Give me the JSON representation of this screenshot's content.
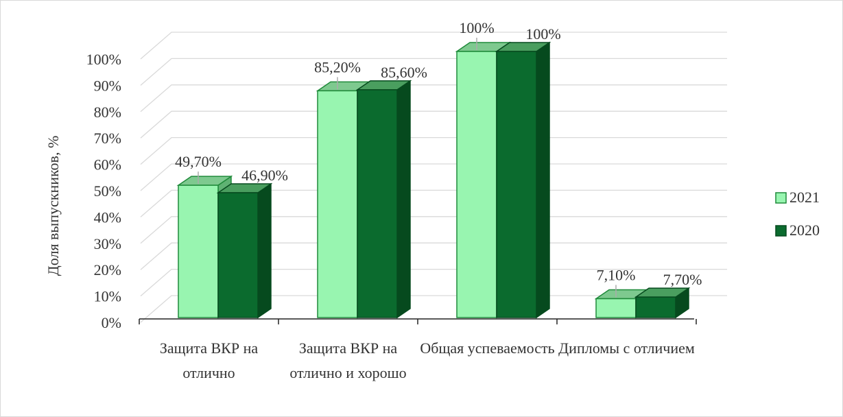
{
  "chart_data": {
    "type": "bar3d",
    "y_axis_label": "Доля выпускников, %",
    "categories": [
      "Защита ВКР на отлично",
      "Защита ВКР на отлично и хорошо",
      "Общая успеваемость",
      "Дипломы с отличием"
    ],
    "series": [
      {
        "name": "2021",
        "color": "#98f5b0",
        "values": [
          49.7,
          85.2,
          100,
          7.1
        ],
        "value_labels": [
          "49,70%",
          "85,20%",
          "100%",
          "7,10%"
        ]
      },
      {
        "name": "2020",
        "color": "#0b6b2e",
        "values": [
          46.9,
          85.6,
          100,
          7.7
        ],
        "value_labels": [
          "46,90%",
          "85,60%",
          "100%",
          "7,70%"
        ]
      }
    ],
    "ylim": [
      0,
      100
    ],
    "yticks": [
      {
        "value": 0,
        "label": "0%"
      },
      {
        "value": 10,
        "label": "10%"
      },
      {
        "value": 20,
        "label": "20%"
      },
      {
        "value": 30,
        "label": "30%"
      },
      {
        "value": 40,
        "label": "40%"
      },
      {
        "value": 50,
        "label": "50%"
      },
      {
        "value": 60,
        "label": "60%"
      },
      {
        "value": 70,
        "label": "70%"
      },
      {
        "value": 80,
        "label": "80%"
      },
      {
        "value": 90,
        "label": "90%"
      },
      {
        "value": 100,
        "label": "100%"
      }
    ],
    "grid": true,
    "legend": "right"
  }
}
